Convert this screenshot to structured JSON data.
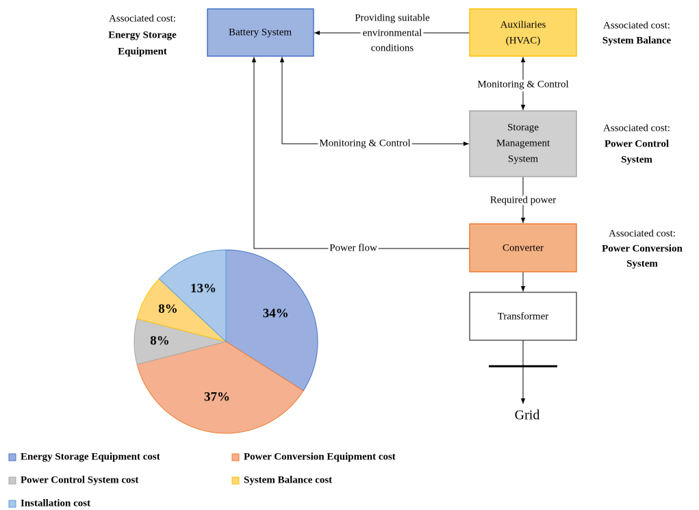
{
  "nodes": [
    {
      "lines": [
        "Battery System"
      ]
    },
    {
      "lines": [
        "Auxiliaries",
        "(HVAC)"
      ]
    },
    {
      "lines": [
        "Storage",
        "Management",
        "System"
      ]
    },
    {
      "lines": [
        "Converter"
      ]
    },
    {
      "lines": [
        "Transformer"
      ]
    }
  ],
  "costs": [
    {
      "caption": "Associated cost:",
      "lines": [
        "Energy Storage",
        "Equipment"
      ]
    },
    {
      "caption": "Associated cost:",
      "lines": [
        "System Balance"
      ]
    },
    {
      "caption": "Associated cost:",
      "lines": [
        "Power Control",
        "System"
      ]
    },
    {
      "caption": "Associated cost:",
      "lines": [
        "Power Conversion",
        "System"
      ]
    }
  ],
  "edges": [
    {
      "lines": [
        "Providing suitable",
        "environmental",
        "conditions"
      ]
    },
    {
      "lines": [
        "Monitoring & Control"
      ]
    },
    {
      "lines": [
        "Monitoring & Control"
      ]
    },
    {
      "lines": [
        "Required power"
      ]
    },
    {
      "lines": [
        "Power flow"
      ]
    }
  ],
  "grid_label": "Grid",
  "chart_data": {
    "type": "pie",
    "categories": [
      "Energy Storage Equipment cost",
      "Power Conversion Equipment cost",
      "Power Control System cost",
      "System Balance cost",
      "Installation cost"
    ],
    "values": [
      34,
      37,
      8,
      8,
      13
    ],
    "value_labels": [
      "34%",
      "37%",
      "8%",
      "8%",
      "13%"
    ],
    "colors": [
      "#9aaee0",
      "#f4b08f",
      "#c9c9c9",
      "#ffd77a",
      "#a9c8ea"
    ],
    "edge_colors": [
      "#4472c4",
      "#ed7d31",
      "#a6a6a6",
      "#ffc000",
      "#5b9bd5"
    ],
    "legend": "bottom"
  }
}
